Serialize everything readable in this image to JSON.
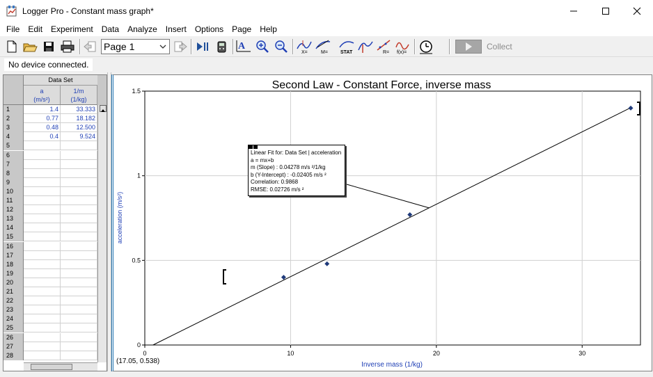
{
  "window": {
    "title": "Logger Pro - Constant mass graph*",
    "icon": "logger-pro-icon"
  },
  "menu": [
    "File",
    "Edit",
    "Experiment",
    "Data",
    "Analyze",
    "Insert",
    "Options",
    "Page",
    "Help"
  ],
  "toolbar": {
    "page_selector": "Page 1",
    "collect_label": "Collect",
    "icons": [
      "new-file-icon",
      "open-folder-icon",
      "save-icon",
      "print-icon",
      "previous-page-icon",
      "next-page-icon",
      "replay-icon",
      "lab-interface-icon",
      "autoscale-icon",
      "zoom-in-icon",
      "zoom-out-icon",
      "examine-icon",
      "tangent-icon",
      "statistics-icon",
      "integral-icon",
      "linear-fit-icon",
      "curve-fit-icon",
      "timer-icon",
      "collect-play-icon"
    ]
  },
  "status": {
    "device": "No device connected."
  },
  "table": {
    "dataset_title": "Data Set",
    "columns": [
      {
        "name": "a",
        "unit": "(m/s²)"
      },
      {
        "name": "1/m",
        "unit": "(1/kg)"
      }
    ],
    "row_numbers": [
      "1",
      "2",
      "3",
      "4",
      "5",
      "6",
      "7",
      "8",
      "9",
      "10",
      "11",
      "12",
      "13",
      "14",
      "15",
      "16",
      "17",
      "18",
      "19",
      "20",
      "21",
      "22",
      "23",
      "24",
      "25",
      "26",
      "27",
      "28"
    ],
    "rows": [
      {
        "a": "1.4",
        "inv_m": "33.333"
      },
      {
        "a": "0.77",
        "inv_m": "18.182"
      },
      {
        "a": "0.48",
        "inv_m": "12.500"
      },
      {
        "a": "0.4",
        "inv_m": "9.524"
      }
    ]
  },
  "chart_data": {
    "type": "scatter",
    "title": "Second Law - Constant Force, inverse mass",
    "xlabel": "Inverse mass (1/kg)",
    "ylabel": "acceleration (m/s²)",
    "xlim": [
      0,
      34
    ],
    "ylim": [
      0,
      1.5
    ],
    "x_ticks": [
      "0",
      "10",
      "20",
      "30"
    ],
    "y_ticks": [
      "0",
      "0.5",
      "1",
      "1.5"
    ],
    "grid": true,
    "points": [
      {
        "x": 9.524,
        "y": 0.4
      },
      {
        "x": 12.5,
        "y": 0.48
      },
      {
        "x": 18.182,
        "y": 0.77
      },
      {
        "x": 33.333,
        "y": 1.4
      }
    ],
    "fit": {
      "slope": 0.04278,
      "intercept": -0.02405
    },
    "point_color": "#1f3a7a",
    "line_color": "#000000",
    "cursor_readout": "(17.05, 0.538)",
    "annotation": {
      "lines": [
        "Linear Fit for: Data Set | acceleration",
        "a = mx+b",
        "m (Slope) : 0.04278 m/s ²/1/kg",
        "b (Y-Intercept) : -0.02405 m/s ²",
        "Correlation: 0.9868",
        "RMSE: 0.02726 m/s ²"
      ]
    }
  }
}
